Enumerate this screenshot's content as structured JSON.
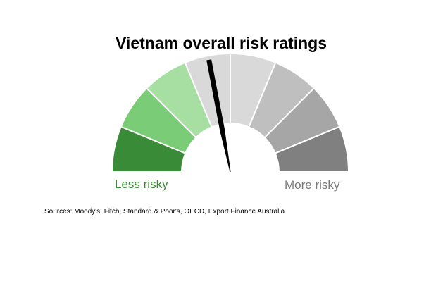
{
  "chart_data": {
    "type": "gauge",
    "title": "Vietnam overall risk ratings",
    "segments": [
      {
        "index": 1,
        "color": "#398b37"
      },
      {
        "index": 2,
        "color": "#7acc76"
      },
      {
        "index": 3,
        "color": "#a7dfa3"
      },
      {
        "index": 4,
        "color": "#d9d9d9"
      },
      {
        "index": 5,
        "color": "#d9d9d9"
      },
      {
        "index": 6,
        "color": "#bfbfbf"
      },
      {
        "index": 7,
        "color": "#a6a6a6"
      },
      {
        "index": 8,
        "color": "#808080"
      }
    ],
    "needle": {
      "value": 0.44,
      "color": "#000000"
    },
    "labels": {
      "low": "Less risky",
      "high": "More risky"
    },
    "source": "Sources: Moody's, Fitch, Standard & Poor's, OECD, Export Finance Australia"
  }
}
